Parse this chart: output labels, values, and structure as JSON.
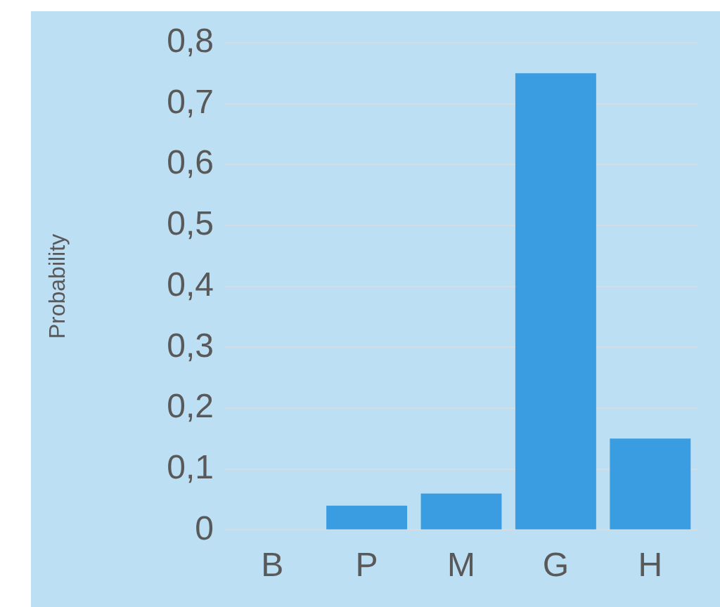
{
  "chart_data": {
    "type": "bar",
    "ylabel": "Probability",
    "categories": [
      "B",
      "P",
      "M",
      "G",
      "H"
    ],
    "values": [
      0,
      0.04,
      0.06,
      0.75,
      0.15
    ],
    "color": "#3b9de1",
    "ylim": [
      0,
      0.8
    ],
    "yticks": [
      {
        "value": 0,
        "label": "0"
      },
      {
        "value": 0.1,
        "label": "0,1"
      },
      {
        "value": 0.2,
        "label": "0,2"
      },
      {
        "value": 0.3,
        "label": "0,3"
      },
      {
        "value": 0.4,
        "label": "0,4"
      },
      {
        "value": 0.5,
        "label": "0,5"
      },
      {
        "value": 0.6,
        "label": "0,6"
      },
      {
        "value": 0.7,
        "label": "0,7"
      },
      {
        "value": 0.8,
        "label": "0,8"
      }
    ],
    "grid": "y"
  }
}
